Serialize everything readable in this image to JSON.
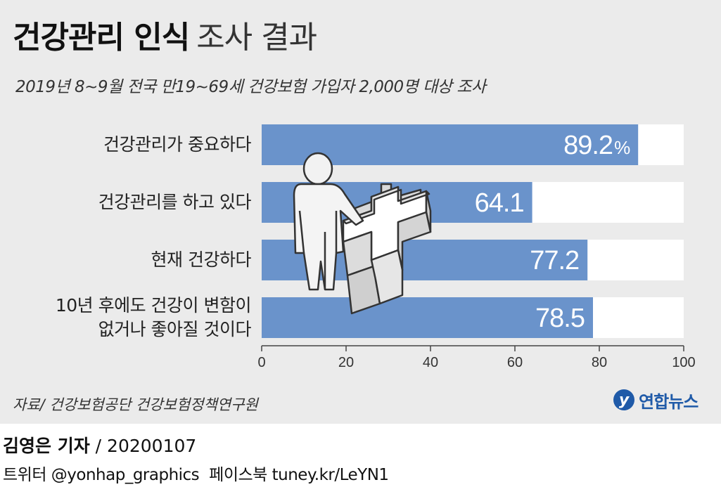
{
  "title_bold": "건강관리 인식",
  "title_light": "조사 결과",
  "subtitle": "2019년 8~9월 전국 만19~69세 건강보험 가입자 2,000명 대상 조사",
  "source": "자료/ 건강보험공단 건강보험정책연구원",
  "logo": {
    "mark": "y",
    "text": "연합뉴스"
  },
  "credit": {
    "author": "김영은 기자",
    "separator": " / ",
    "date": "20200107"
  },
  "social": {
    "twitter": "트위터 @yonhap_graphics",
    "facebook": "페이스북 tuney.kr/LeYN1"
  },
  "colors": {
    "bar": "#6a93cb",
    "track": "#ffffff",
    "panel": "#ebebeb",
    "accent": "#1f5aa8"
  },
  "illustration": "person-with-medical-cross-icon",
  "chart_data": {
    "type": "bar",
    "orientation": "horizontal",
    "categories": [
      [
        "건강관리가 중요하다"
      ],
      [
        "건강관리를 하고 있다"
      ],
      [
        "현재 건강하다"
      ],
      [
        "10년 후에도 건강이 변함이",
        "없거나 좋아질 것이다"
      ]
    ],
    "values": [
      89.2,
      64.1,
      77.2,
      78.5
    ],
    "value_labels": [
      "89.2",
      "64.1",
      "77.2",
      "78.5"
    ],
    "unit_first_bar": "%",
    "x_ticks": [
      0,
      20,
      40,
      60,
      80,
      100
    ],
    "xlim": [
      0,
      100
    ],
    "grid": false,
    "legend": "none"
  }
}
